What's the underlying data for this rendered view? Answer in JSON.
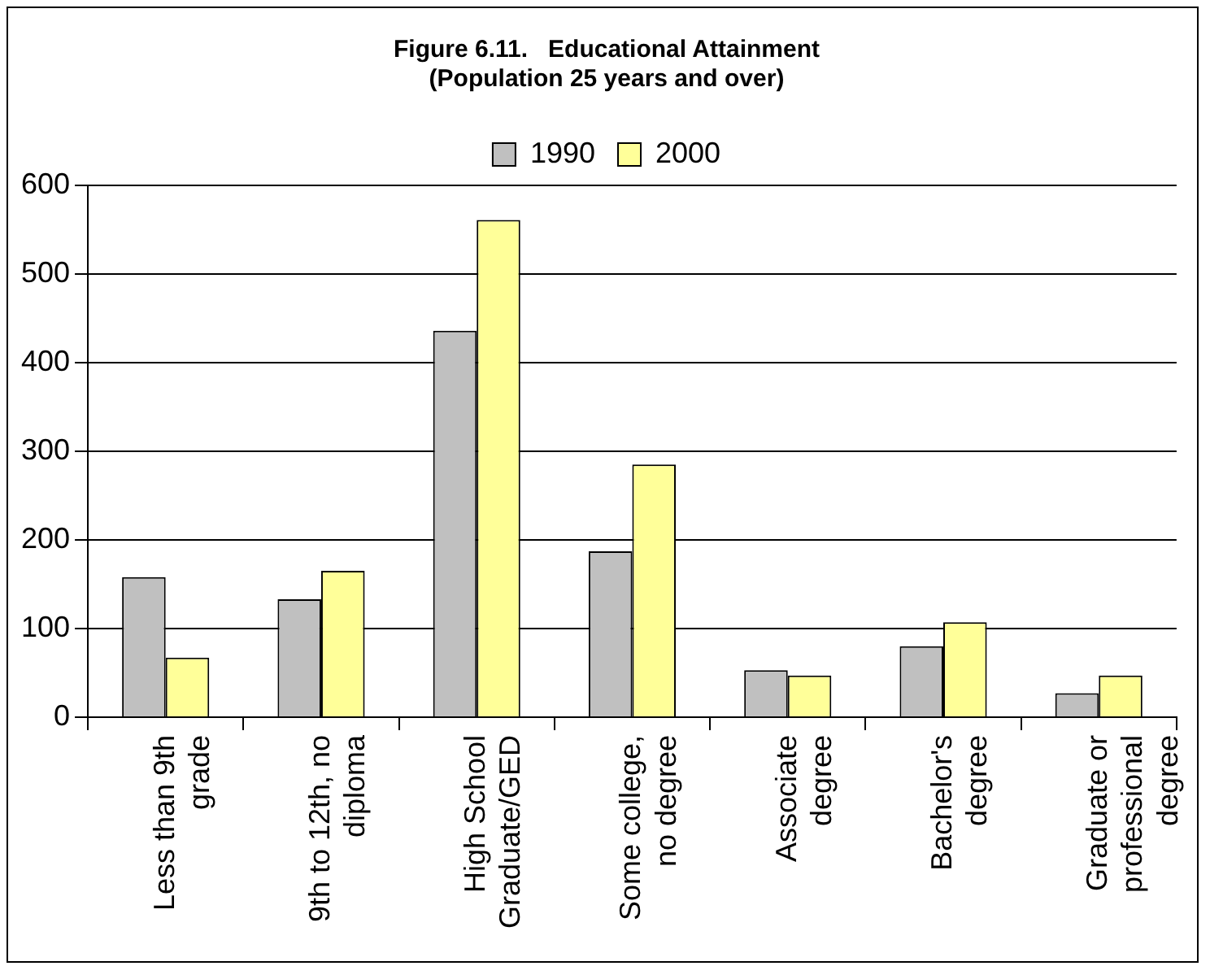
{
  "chart_data": {
    "type": "bar",
    "title": "Figure 6.11.   Educational Attainment (Population 25 years and over)",
    "categories": [
      "Less than 9th\ngrade",
      "9th to 12th, no\ndiploma",
      "High School\nGraduate/GED",
      "Some college,\nno degree",
      "Associate\ndegree",
      "Bachelor's\ndegree",
      "Graduate or\nprofessional\ndegree"
    ],
    "series": [
      {
        "name": "1990",
        "color": "#c0c0c0",
        "values": [
          158,
          133,
          436,
          187,
          53,
          80,
          27
        ]
      },
      {
        "name": "2000",
        "color": "#ffff99",
        "values": [
          67,
          165,
          561,
          285,
          47,
          107,
          47
        ]
      }
    ],
    "ylim": [
      0,
      600
    ],
    "yticks": [
      0,
      100,
      200,
      300,
      400,
      500,
      600
    ],
    "grid": "y",
    "legend": "top"
  }
}
